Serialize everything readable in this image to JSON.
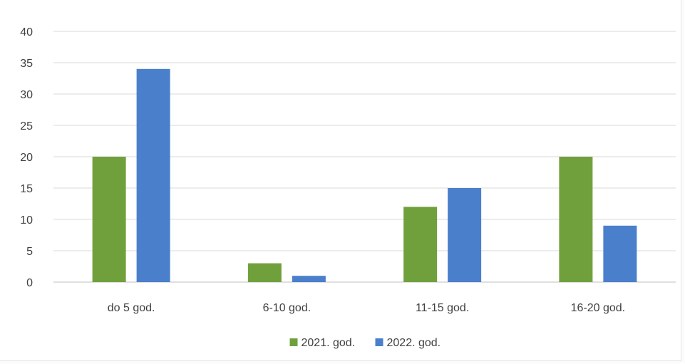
{
  "chart_data": {
    "type": "bar",
    "title": "",
    "xlabel": "",
    "ylabel": "",
    "categories": [
      "do 5 god.",
      "6-10 god.",
      "11-15 god.",
      "16-20 god."
    ],
    "series": [
      {
        "name": "2021. god.",
        "color": "#70a03c",
        "values": [
          20,
          3,
          12,
          20
        ]
      },
      {
        "name": "2022. god.",
        "color": "#4a7fcb",
        "values": [
          34,
          1,
          15,
          9
        ]
      }
    ],
    "ylim": [
      0,
      40
    ],
    "yticks": [
      0,
      5,
      10,
      15,
      20,
      25,
      30,
      35,
      40
    ],
    "grid": true,
    "legend_position": "bottom"
  }
}
